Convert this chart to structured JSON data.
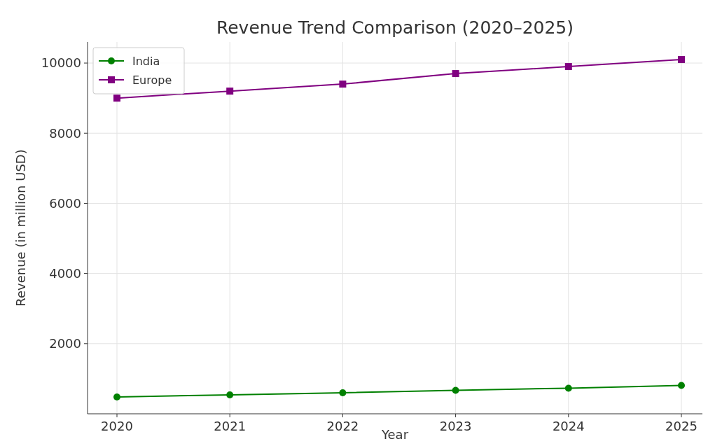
{
  "chart_data": {
    "type": "line",
    "title": "Revenue Trend Comparison (2020–2025)",
    "xlabel": "Year",
    "ylabel": "Revenue (in million USD)",
    "categories": [
      "2020",
      "2021",
      "2022",
      "2023",
      "2024",
      "2025"
    ],
    "series": [
      {
        "name": "India",
        "color": "#008000",
        "marker": "circle",
        "values": [
          480,
          540,
          600,
          670,
          730,
          810
        ]
      },
      {
        "name": "Europe",
        "color": "#800080",
        "marker": "square",
        "values": [
          9000,
          9200,
          9400,
          9700,
          9900,
          10100
        ]
      }
    ],
    "ylim": [
      0,
      10600
    ],
    "yticks": [
      2000,
      4000,
      6000,
      8000,
      10000
    ],
    "grid": true,
    "legend": "top left",
    "line_style": "solid"
  }
}
